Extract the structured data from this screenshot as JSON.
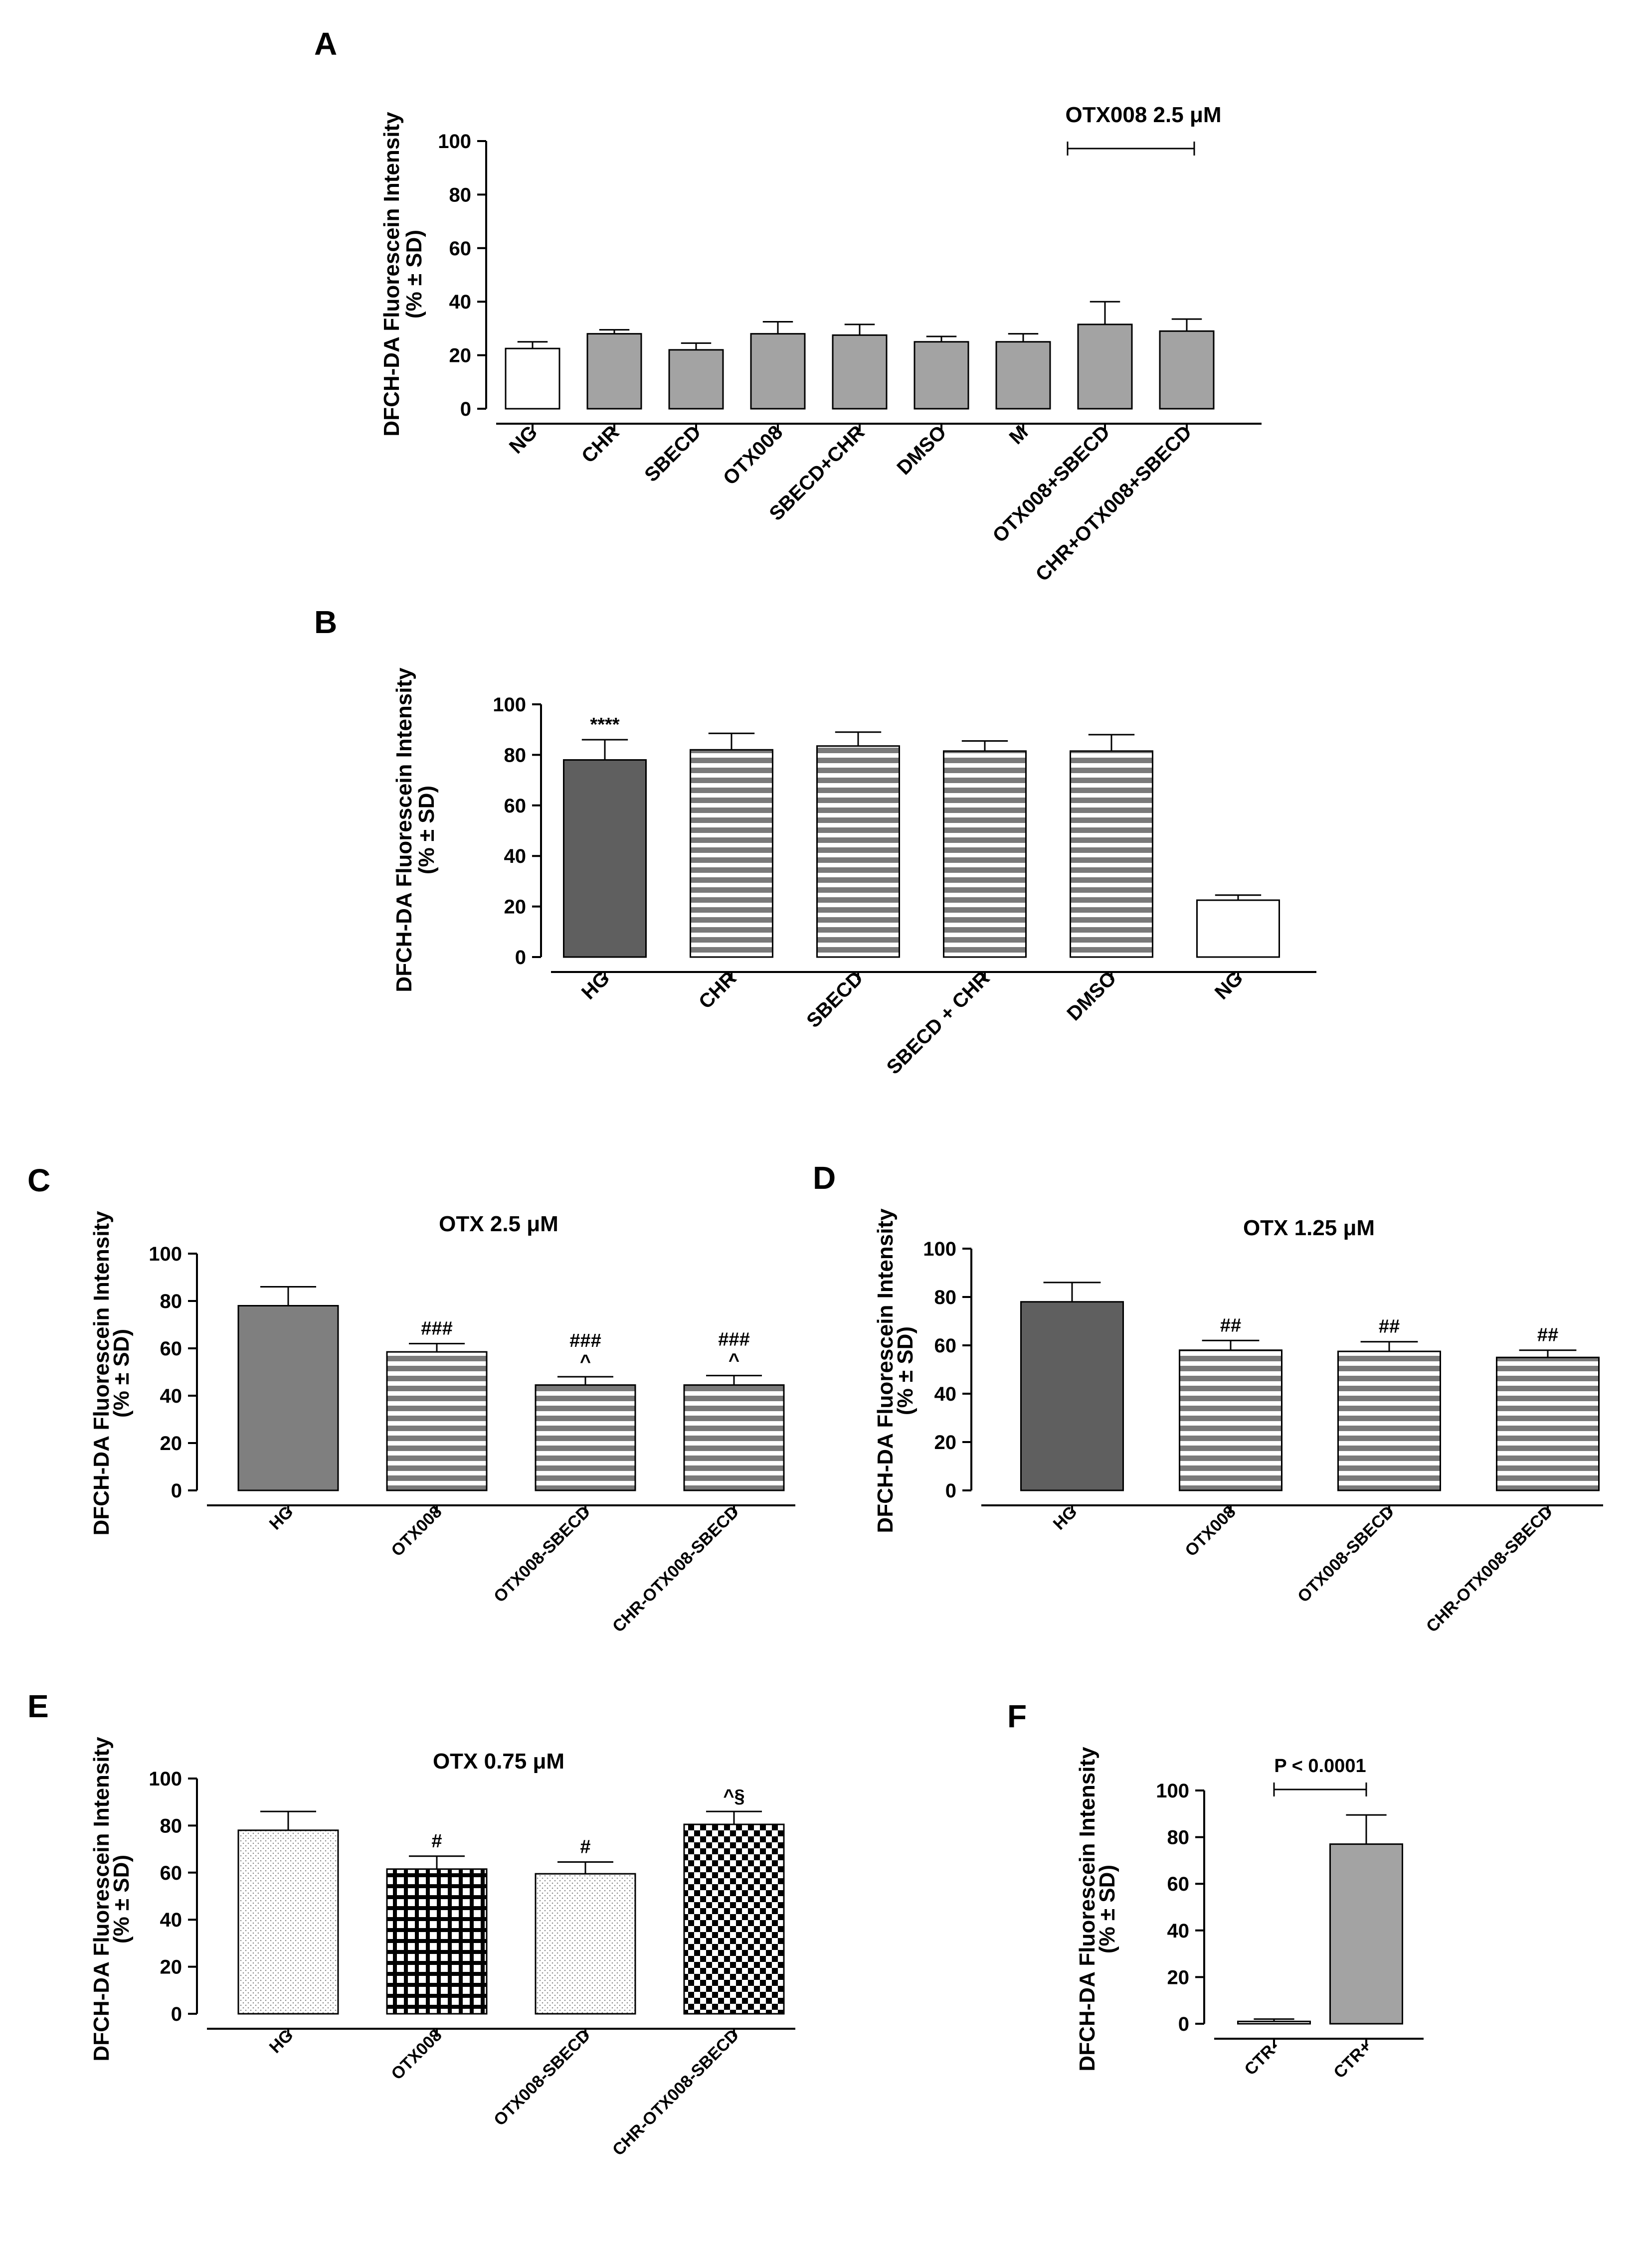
{
  "chart_data": [
    {
      "panel": "A",
      "type": "bar",
      "title": "",
      "ylabel_lines": [
        "DFCH-DA Fluorescein Intensity",
        "(% ± SD)"
      ],
      "ylim": [
        0,
        100
      ],
      "yticks": [
        0,
        20,
        40,
        60,
        80,
        100
      ],
      "categories": [
        "NG",
        "CHR",
        "SBECD",
        "OTX008",
        "SBECD+CHR",
        "DMSO",
        "M",
        "OTX008+SBECD",
        "CHR+OTX008+SBECD"
      ],
      "values": [
        22.5,
        28,
        22,
        28,
        27.5,
        25,
        25,
        31.5,
        29
      ],
      "errors": [
        2.5,
        1.5,
        2.5,
        4.5,
        4,
        2,
        3,
        8.5,
        4.5
      ],
      "fills": [
        "white",
        "gray",
        "gray",
        "gray",
        "gray",
        "gray",
        "gray",
        "gray",
        "gray"
      ],
      "annotations": [],
      "bracket": {
        "label": "OTX008 2.5 μM",
        "from": 7,
        "to": 8
      }
    },
    {
      "panel": "B",
      "type": "bar",
      "title": "",
      "ylabel_lines": [
        "DFCH-DA Fluorescein Intensity",
        "(% ± SD)"
      ],
      "ylim": [
        0,
        100
      ],
      "yticks": [
        0,
        20,
        40,
        60,
        80,
        100
      ],
      "categories": [
        "HG",
        "CHR",
        "SBECD",
        "SBECD + CHR",
        "DMSO",
        "NG"
      ],
      "values": [
        78,
        82,
        83.5,
        81.5,
        81.5,
        22.5
      ],
      "errors": [
        8,
        6.5,
        5.5,
        4,
        6.5,
        2
      ],
      "fills": [
        "dark",
        "hstripe",
        "hstripe",
        "hstripe",
        "hstripe",
        "white"
      ],
      "annotations": [
        "****",
        "",
        "",
        "",
        "",
        ""
      ]
    },
    {
      "panel": "C",
      "type": "bar",
      "title": "OTX 2.5 μM",
      "ylabel_lines": [
        "DFCH-DA Fluorescein Intensity",
        "(% ± SD)"
      ],
      "ylim": [
        0,
        100
      ],
      "yticks": [
        0,
        20,
        40,
        60,
        80,
        100
      ],
      "categories": [
        "HG",
        "OTX008",
        "OTX008-SBECD",
        "CHR-OTX008-SBECD"
      ],
      "values": [
        78,
        58.5,
        44.5,
        44.5
      ],
      "errors": [
        8,
        3.5,
        3.5,
        4
      ],
      "fills": [
        "midgray",
        "hstripe",
        "hstripe",
        "hstripe"
      ],
      "annotations": [
        "",
        "###",
        "###|^",
        "###|^"
      ]
    },
    {
      "panel": "D",
      "type": "bar",
      "title": "OTX 1.25 μM",
      "ylabel_lines": [
        "DFCH-DA Fluorescein Intensity",
        "(% ± SD)"
      ],
      "ylim": [
        0,
        100
      ],
      "yticks": [
        0,
        20,
        40,
        60,
        80,
        100
      ],
      "categories": [
        "HG",
        "OTX008",
        "OTX008-SBECD",
        "CHR-OTX008-SBECD"
      ],
      "values": [
        78,
        58,
        57.5,
        55
      ],
      "errors": [
        8,
        4,
        4,
        3
      ],
      "fills": [
        "dark",
        "hstripe",
        "hstripe",
        "hstripe"
      ],
      "annotations": [
        "",
        "##",
        "##",
        "##"
      ]
    },
    {
      "panel": "E",
      "type": "bar",
      "title": "OTX 0.75 μM",
      "ylabel_lines": [
        "DFCH-DA Fluorescein Intensity",
        "(% ± SD)"
      ],
      "ylim": [
        0,
        100
      ],
      "yticks": [
        0,
        20,
        40,
        60,
        80,
        100
      ],
      "categories": [
        "HG",
        "OTX008",
        "OTX008-SBECD",
        "CHR-OTX008-SBECD"
      ],
      "values": [
        78,
        61.5,
        59.5,
        80.5
      ],
      "errors": [
        8,
        5.5,
        5,
        5.5
      ],
      "fills": [
        "dots",
        "grid",
        "dots",
        "checker"
      ],
      "annotations": [
        "",
        "#",
        "#",
        "^§"
      ]
    },
    {
      "panel": "F",
      "type": "bar",
      "title": "",
      "ylabel_lines": [
        "DFCH-DA Fluorescein Intensity",
        "(% ± SD)"
      ],
      "ylim": [
        0,
        100
      ],
      "yticks": [
        0,
        20,
        40,
        60,
        80,
        100
      ],
      "categories": [
        "CTR-",
        "CTR+"
      ],
      "values": [
        1,
        77
      ],
      "errors": [
        1,
        12.5
      ],
      "fills": [
        "white",
        "gray"
      ],
      "annotations": [
        "",
        ""
      ],
      "pvalue": {
        "label": "P < 0.0001",
        "from": 0,
        "to": 1
      }
    }
  ]
}
